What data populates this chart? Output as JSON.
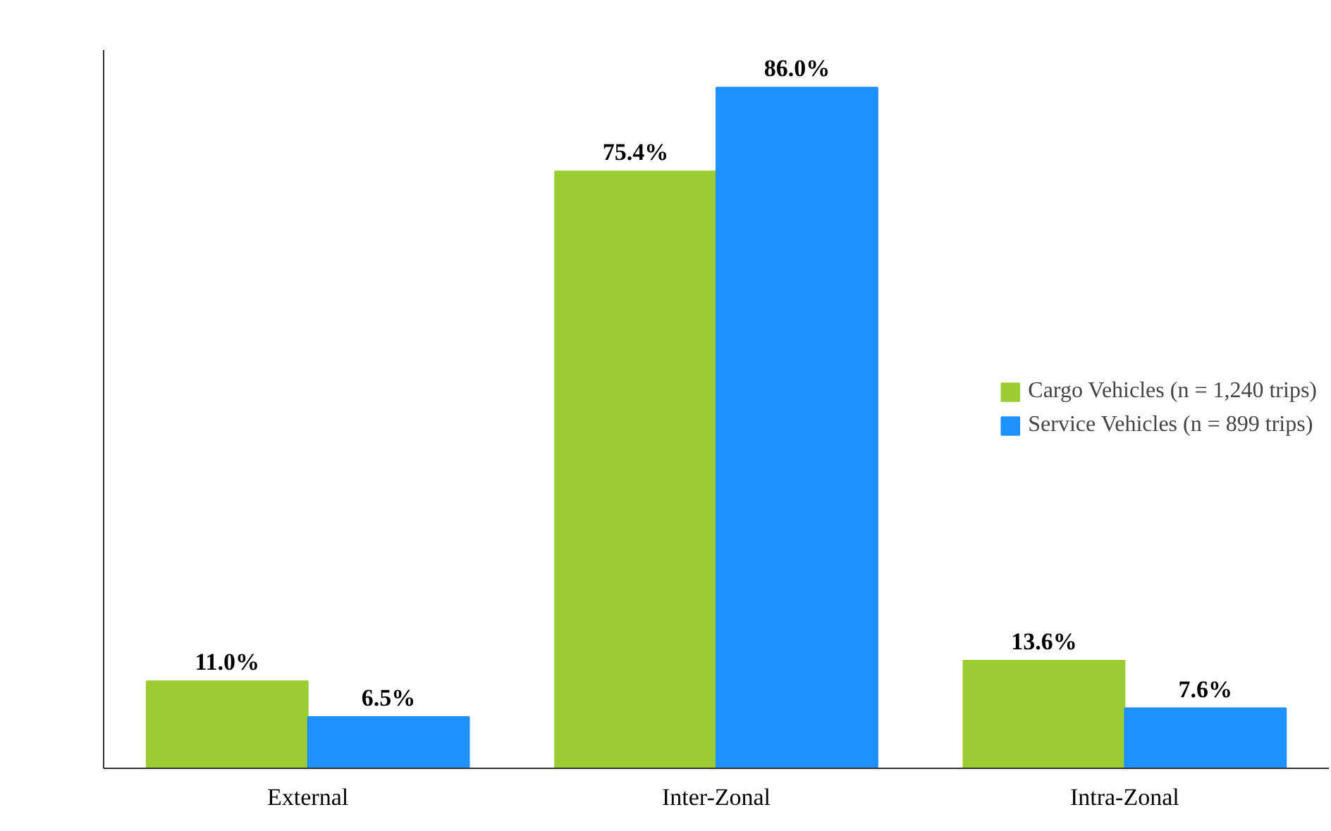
{
  "chart_data": {
    "type": "bar",
    "categories": [
      "External",
      "Inter-Zonal",
      "Intra-Zonal"
    ],
    "series": [
      {
        "name": "Cargo Vehicles (n = 1,240 trips)",
        "color": "#9acd32",
        "values": [
          11.0,
          75.4,
          13.6
        ],
        "value_labels": [
          "11.0%",
          "75.4%",
          "13.6%"
        ]
      },
      {
        "name": "Service Vehicles (n = 899 trips)",
        "color": "#1e90ff",
        "values": [
          6.5,
          86.0,
          7.6
        ],
        "value_labels": [
          "6.5%",
          "86.0%",
          "7.6%"
        ]
      }
    ],
    "grid": false,
    "legend": "right",
    "tick_labels": "x"
  }
}
